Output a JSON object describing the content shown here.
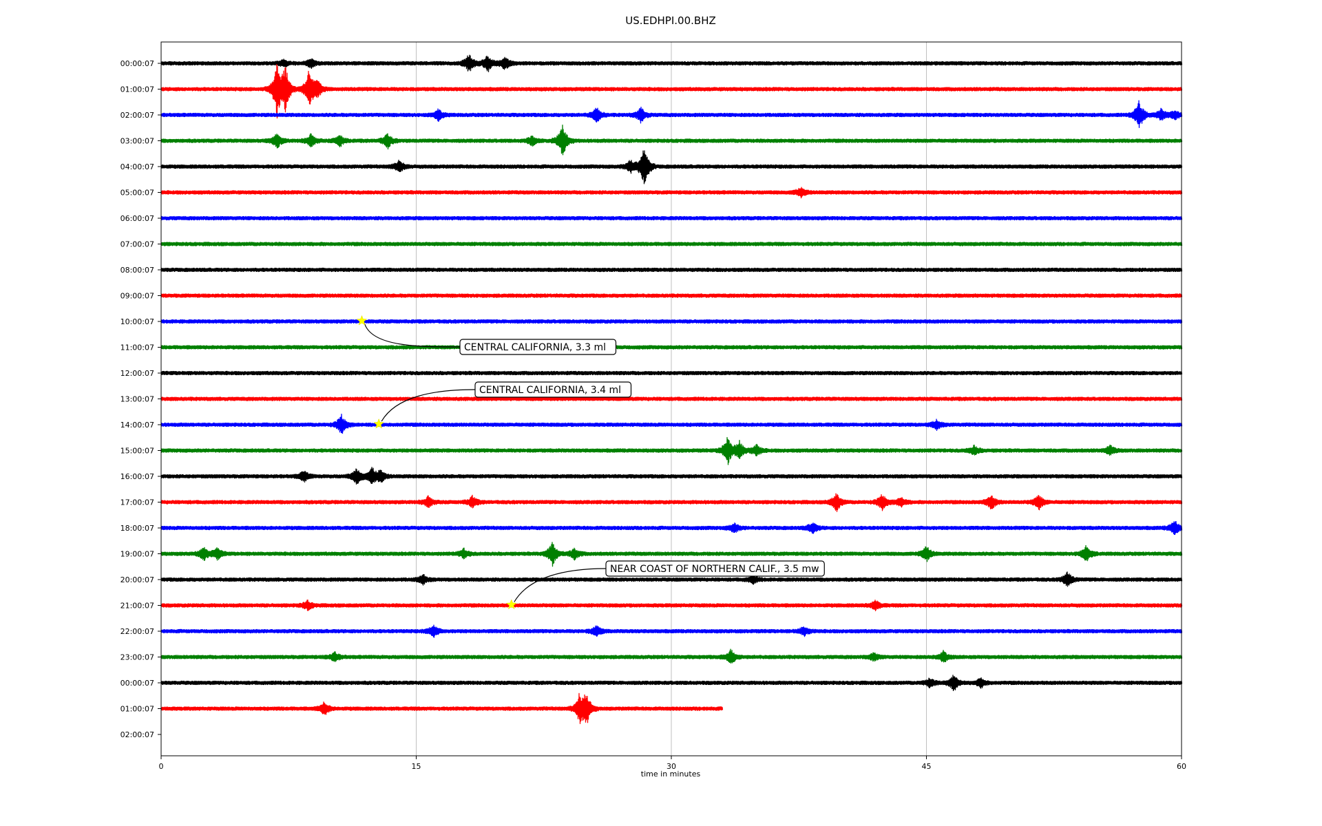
{
  "chart_data": {
    "type": "line",
    "title": "US.EDHPI.00.BHZ",
    "xlabel": "time in minutes",
    "ylabel": "",
    "xlim": [
      0,
      60
    ],
    "x_ticks": [
      0,
      15,
      30,
      45,
      60
    ],
    "grid": "vertical",
    "color_cycle": [
      "#000000",
      "#ff0000",
      "#0000ff",
      "#008000"
    ],
    "row_labels": [
      "00:00:07",
      "01:00:07",
      "02:00:07",
      "03:00:07",
      "04:00:07",
      "05:00:07",
      "06:00:07",
      "07:00:07",
      "08:00:07",
      "09:00:07",
      "10:00:07",
      "11:00:07",
      "12:00:07",
      "13:00:07",
      "14:00:07",
      "15:00:07",
      "16:00:07",
      "17:00:07",
      "18:00:07",
      "19:00:07",
      "20:00:07",
      "21:00:07",
      "22:00:07",
      "23:00:07",
      "00:00:07",
      "01:00:07",
      "02:00:07"
    ],
    "traces": [
      {
        "row": 0,
        "end": 60,
        "events": [
          [
            7.2,
            0.4
          ],
          [
            8.8,
            0.5
          ],
          [
            18.1,
            1.0
          ],
          [
            19.2,
            0.9
          ],
          [
            20.2,
            0.7
          ]
        ]
      },
      {
        "row": 1,
        "end": 60,
        "events": [
          [
            6.8,
            3.0
          ],
          [
            7.3,
            2.5
          ],
          [
            8.7,
            2.2
          ],
          [
            9.2,
            0.8
          ]
        ]
      },
      {
        "row": 2,
        "end": 60,
        "events": [
          [
            16.3,
            0.6
          ],
          [
            25.6,
            0.8
          ],
          [
            28.2,
            0.8
          ],
          [
            57.5,
            1.6
          ],
          [
            58.8,
            0.6
          ],
          [
            59.6,
            0.5
          ]
        ]
      },
      {
        "row": 3,
        "end": 60,
        "events": [
          [
            6.8,
            0.8
          ],
          [
            8.8,
            0.7
          ],
          [
            10.5,
            0.6
          ],
          [
            13.3,
            0.8
          ],
          [
            23.6,
            1.8
          ],
          [
            21.8,
            0.5
          ]
        ]
      },
      {
        "row": 4,
        "end": 60,
        "events": [
          [
            14.0,
            0.7
          ],
          [
            27.6,
            0.7
          ],
          [
            28.4,
            2.3
          ]
        ]
      },
      {
        "row": 5,
        "end": 60,
        "events": [
          [
            37.6,
            0.5
          ]
        ]
      },
      {
        "row": 6,
        "end": 60,
        "events": []
      },
      {
        "row": 7,
        "end": 60,
        "events": []
      },
      {
        "row": 8,
        "end": 60,
        "events": []
      },
      {
        "row": 9,
        "end": 60,
        "events": []
      },
      {
        "row": 10,
        "end": 60,
        "events": []
      },
      {
        "row": 11,
        "end": 60,
        "events": []
      },
      {
        "row": 12,
        "end": 60,
        "events": []
      },
      {
        "row": 13,
        "end": 60,
        "events": []
      },
      {
        "row": 14,
        "end": 60,
        "events": [
          [
            10.6,
            1.1
          ],
          [
            45.6,
            0.5
          ]
        ]
      },
      {
        "row": 15,
        "end": 60,
        "events": [
          [
            33.3,
            1.5
          ],
          [
            34.0,
            1.0
          ],
          [
            35.0,
            0.6
          ],
          [
            47.8,
            0.5
          ],
          [
            55.8,
            0.5
          ]
        ]
      },
      {
        "row": 16,
        "end": 60,
        "events": [
          [
            8.4,
            0.6
          ],
          [
            11.5,
            0.9
          ],
          [
            12.4,
            0.9
          ],
          [
            12.9,
            0.6
          ]
        ]
      },
      {
        "row": 17,
        "end": 60,
        "events": [
          [
            15.7,
            0.6
          ],
          [
            18.3,
            0.6
          ],
          [
            39.7,
            1.0
          ],
          [
            42.4,
            0.9
          ],
          [
            43.5,
            0.5
          ],
          [
            48.8,
            0.8
          ],
          [
            51.6,
            0.8
          ]
        ]
      },
      {
        "row": 18,
        "end": 60,
        "events": [
          [
            33.7,
            0.5
          ],
          [
            38.3,
            0.6
          ],
          [
            59.6,
            0.8
          ]
        ]
      },
      {
        "row": 19,
        "end": 60,
        "events": [
          [
            2.5,
            0.7
          ],
          [
            3.3,
            0.6
          ],
          [
            17.8,
            0.5
          ],
          [
            23.0,
            1.3
          ],
          [
            24.3,
            0.6
          ],
          [
            45.0,
            0.8
          ],
          [
            54.4,
            0.9
          ]
        ]
      },
      {
        "row": 20,
        "end": 60,
        "events": [
          [
            15.4,
            0.5
          ],
          [
            53.3,
            0.8
          ],
          [
            34.8,
            0.4
          ]
        ]
      },
      {
        "row": 21,
        "end": 60,
        "events": [
          [
            8.6,
            0.5
          ],
          [
            42.0,
            0.5
          ]
        ]
      },
      {
        "row": 22,
        "end": 60,
        "events": [
          [
            16.0,
            0.7
          ],
          [
            25.6,
            0.6
          ],
          [
            37.8,
            0.5
          ]
        ]
      },
      {
        "row": 23,
        "end": 60,
        "events": [
          [
            10.2,
            0.5
          ],
          [
            33.5,
            0.8
          ],
          [
            41.9,
            0.4
          ],
          [
            46.0,
            0.6
          ]
        ]
      },
      {
        "row": 24,
        "end": 60,
        "events": [
          [
            45.2,
            0.5
          ],
          [
            46.6,
            0.9
          ],
          [
            48.2,
            0.5
          ]
        ]
      },
      {
        "row": 25,
        "end": 33,
        "events": [
          [
            9.6,
            0.7
          ],
          [
            24.6,
            1.5
          ],
          [
            25.0,
            1.7
          ]
        ]
      }
    ],
    "annotations": [
      {
        "text": "CENTRAL CALIFORNIA, 3.3 ml",
        "row": 10,
        "x": 11.8
      },
      {
        "text": "CENTRAL CALIFORNIA, 3.4 ml",
        "row": 14,
        "x": 12.8
      },
      {
        "text": "NEAR COAST OF NORTHERN CALIF., 3.5 mw",
        "row": 21,
        "x": 20.6
      }
    ],
    "marker_color": "#ffff00"
  }
}
